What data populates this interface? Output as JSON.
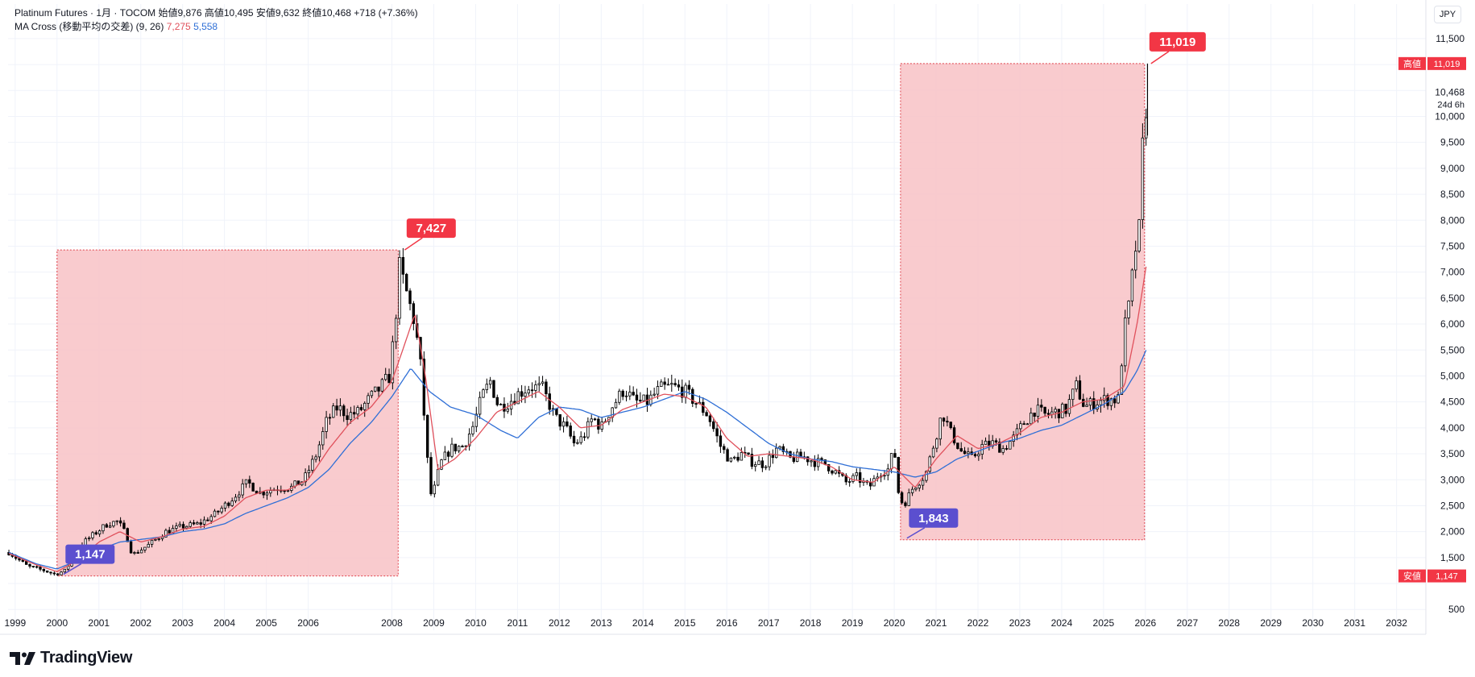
{
  "header": {
    "line1": "Platinum Futures · 1月 · TOCOM  始値9,876  高値10,495  安値9,632  終値10,468  +718 (+7.36%)",
    "ma_label": "MA Cross (移動平均の交差) (9, 26)",
    "ma_fast_value": "7,275",
    "ma_slow_value": "5,558"
  },
  "currency_button": "JPY",
  "logo_text": "TradingView",
  "colors": {
    "up": "#000000",
    "down": "#000000",
    "ma_fast": "#e0515c",
    "ma_slow": "#2f6fd6",
    "zone_fill": "#f8c2c6",
    "zone_border": "#e0404a",
    "high_label_bg": "#f23645",
    "low_label_bg": "#5b4fcf",
    "grid": "#f0f3fa"
  },
  "chart_data": {
    "type": "candlestick",
    "interval": "1M",
    "y_axis": {
      "position": "right",
      "ticks": [
        500,
        1000,
        1500,
        2000,
        2500,
        3000,
        3500,
        4000,
        4500,
        5000,
        5500,
        6000,
        6500,
        7000,
        7500,
        8000,
        8500,
        9000,
        9500,
        10000,
        10500,
        11000,
        11500
      ],
      "tick_labels": [
        "500",
        "",
        "1,500",
        "2,000",
        "2,500",
        "3,000",
        "3,500",
        "4,000",
        "4,500",
        "5,000",
        "5,500",
        "6,000",
        "6,500",
        "7,000",
        "7,500",
        "8,000",
        "8,500",
        "9,000",
        "9,500",
        "10,000",
        "",
        "",
        "11,500"
      ],
      "range": [
        100,
        11700
      ]
    },
    "x_axis": {
      "tick_labels": [
        "1999",
        "2000",
        "2001",
        "2002",
        "2003",
        "2004",
        "2005",
        "2006",
        "2008",
        "2009",
        "2010",
        "2011",
        "2012",
        "2013",
        "2014",
        "2015",
        "2016",
        "2017",
        "2018",
        "2019",
        "2020",
        "2021",
        "2022",
        "2023",
        "2024",
        "2025",
        "2026",
        "2027",
        "2028",
        "2029",
        "2030",
        "2031",
        "2032"
      ],
      "range": [
        1998.83,
        2032.7
      ]
    },
    "price_anchors": [
      [
        1998.85,
        1600
      ],
      [
        1999.3,
        1330
      ],
      [
        1999.7,
        1250
      ],
      [
        1999.95,
        1180
      ],
      [
        2000.2,
        1250
      ],
      [
        2000.5,
        1700
      ],
      [
        2000.8,
        1900
      ],
      [
        2001.2,
        2150
      ],
      [
        2001.45,
        2200
      ],
      [
        2001.65,
        1950
      ],
      [
        2001.8,
        1550
      ],
      [
        2002.2,
        1750
      ],
      [
        2002.6,
        2000
      ],
      [
        2003.0,
        2100
      ],
      [
        2003.4,
        2150
      ],
      [
        2003.8,
        2350
      ],
      [
        2004.2,
        2650
      ],
      [
        2004.55,
        2950
      ],
      [
        2004.85,
        2750
      ],
      [
        2005.3,
        2850
      ],
      [
        2005.6,
        2850
      ],
      [
        2005.9,
        3000
      ],
      [
        2006.2,
        3500
      ],
      [
        2006.45,
        4150
      ],
      [
        2006.7,
        4400
      ],
      [
        2006.95,
        4250
      ],
      [
        2007.2,
        4300
      ],
      [
        2007.45,
        4550
      ],
      [
        2007.7,
        4750
      ],
      [
        2007.95,
        5000
      ],
      [
        2008.1,
        6250
      ],
      [
        2008.18,
        7100
      ],
      [
        2008.35,
        6600
      ],
      [
        2008.55,
        6000
      ],
      [
        2008.7,
        5100
      ],
      [
        2008.82,
        3600
      ],
      [
        2008.95,
        2600
      ],
      [
        2009.15,
        3300
      ],
      [
        2009.4,
        3600
      ],
      [
        2009.7,
        3650
      ],
      [
        2009.95,
        4050
      ],
      [
        2010.15,
        4600
      ],
      [
        2010.35,
        4900
      ],
      [
        2010.55,
        4400
      ],
      [
        2010.8,
        4500
      ],
      [
        2011.0,
        4650
      ],
      [
        2011.3,
        4800
      ],
      [
        2011.6,
        4750
      ],
      [
        2011.9,
        4200
      ],
      [
        2012.15,
        4000
      ],
      [
        2012.35,
        3700
      ],
      [
        2012.55,
        3800
      ],
      [
        2012.8,
        4200
      ],
      [
        2013.0,
        4000
      ],
      [
        2013.25,
        4400
      ],
      [
        2013.55,
        4750
      ],
      [
        2013.8,
        4500
      ],
      [
        2014.1,
        4500
      ],
      [
        2014.4,
        4750
      ],
      [
        2014.7,
        4800
      ],
      [
        2015.0,
        4700
      ],
      [
        2015.25,
        4500
      ],
      [
        2015.55,
        4250
      ],
      [
        2015.85,
        3650
      ],
      [
        2016.1,
        3350
      ],
      [
        2016.35,
        3500
      ],
      [
        2016.6,
        3350
      ],
      [
        2016.9,
        3300
      ],
      [
        2017.2,
        3600
      ],
      [
        2017.5,
        3400
      ],
      [
        2017.8,
        3450
      ],
      [
        2018.1,
        3350
      ],
      [
        2018.35,
        3300
      ],
      [
        2018.6,
        3150
      ],
      [
        2018.85,
        2950
      ],
      [
        2019.1,
        3050
      ],
      [
        2019.4,
        2850
      ],
      [
        2019.65,
        3150
      ],
      [
        2019.85,
        3200
      ],
      [
        2020.0,
        3600
      ],
      [
        2020.12,
        2600
      ],
      [
        2020.25,
        2550
      ],
      [
        2020.45,
        2850
      ],
      [
        2020.75,
        3100
      ],
      [
        2020.95,
        3700
      ],
      [
        2021.15,
        4300
      ],
      [
        2021.35,
        3900
      ],
      [
        2021.6,
        3550
      ],
      [
        2021.85,
        3400
      ],
      [
        2022.1,
        3650
      ],
      [
        2022.35,
        3700
      ],
      [
        2022.6,
        3600
      ],
      [
        2022.85,
        3800
      ],
      [
        2023.1,
        4100
      ],
      [
        2023.35,
        4350
      ],
      [
        2023.6,
        4250
      ],
      [
        2023.85,
        4300
      ],
      [
        2024.1,
        4350
      ],
      [
        2024.35,
        4800
      ],
      [
        2024.55,
        4400
      ],
      [
        2024.8,
        4500
      ],
      [
        2025.1,
        4550
      ],
      [
        2025.35,
        4550
      ],
      [
        2025.5,
        5900
      ],
      [
        2025.62,
        6400
      ],
      [
        2025.75,
        7400
      ],
      [
        2025.85,
        7800
      ],
      [
        2025.95,
        9700
      ],
      [
        2026.05,
        10468
      ]
    ],
    "ma_fast": {
      "name": "MA(9)",
      "anchors": [
        [
          1998.85,
          1580
        ],
        [
          1999.5,
          1360
        ],
        [
          2000.0,
          1230
        ],
        [
          2000.5,
          1450
        ],
        [
          2001.0,
          1800
        ],
        [
          2001.5,
          2000
        ],
        [
          2002.0,
          1800
        ],
        [
          2002.5,
          1900
        ],
        [
          2003.0,
          2050
        ],
        [
          2003.5,
          2100
        ],
        [
          2004.0,
          2300
        ],
        [
          2004.5,
          2650
        ],
        [
          2005.0,
          2800
        ],
        [
          2005.5,
          2800
        ],
        [
          2006.0,
          3000
        ],
        [
          2006.5,
          3600
        ],
        [
          2007.0,
          4100
        ],
        [
          2007.5,
          4400
        ],
        [
          2008.0,
          4900
        ],
        [
          2008.3,
          5600
        ],
        [
          2008.55,
          6200
        ],
        [
          2008.8,
          5000
        ],
        [
          2009.1,
          3200
        ],
        [
          2009.5,
          3400
        ],
        [
          2010.0,
          3800
        ],
        [
          2010.5,
          4300
        ],
        [
          2011.0,
          4500
        ],
        [
          2011.5,
          4700
        ],
        [
          2012.0,
          4400
        ],
        [
          2012.5,
          4000
        ],
        [
          2013.0,
          4050
        ],
        [
          2013.5,
          4350
        ],
        [
          2014.0,
          4500
        ],
        [
          2014.5,
          4650
        ],
        [
          2015.0,
          4600
        ],
        [
          2015.5,
          4400
        ],
        [
          2016.0,
          3800
        ],
        [
          2016.5,
          3450
        ],
        [
          2017.0,
          3500
        ],
        [
          2017.5,
          3450
        ],
        [
          2018.0,
          3400
        ],
        [
          2018.5,
          3250
        ],
        [
          2019.0,
          3000
        ],
        [
          2019.5,
          2950
        ],
        [
          2020.0,
          3250
        ],
        [
          2020.5,
          2850
        ],
        [
          2021.0,
          3400
        ],
        [
          2021.5,
          3850
        ],
        [
          2022.0,
          3600
        ],
        [
          2022.5,
          3700
        ],
        [
          2023.0,
          3900
        ],
        [
          2023.5,
          4200
        ],
        [
          2024.0,
          4300
        ],
        [
          2024.5,
          4500
        ],
        [
          2025.0,
          4550
        ],
        [
          2025.5,
          4800
        ],
        [
          2025.8,
          6000
        ],
        [
          2026.05,
          7275
        ]
      ]
    },
    "ma_slow": {
      "name": "MA(26)",
      "anchors": [
        [
          1998.85,
          1600
        ],
        [
          1999.5,
          1380
        ],
        [
          2000.0,
          1280
        ],
        [
          2000.5,
          1450
        ],
        [
          2001.0,
          1650
        ],
        [
          2001.5,
          1800
        ],
        [
          2002.0,
          1850
        ],
        [
          2002.5,
          1900
        ],
        [
          2003.0,
          2000
        ],
        [
          2003.5,
          2050
        ],
        [
          2004.0,
          2150
        ],
        [
          2004.5,
          2350
        ],
        [
          2005.0,
          2500
        ],
        [
          2005.5,
          2650
        ],
        [
          2006.0,
          2850
        ],
        [
          2006.5,
          3200
        ],
        [
          2007.0,
          3700
        ],
        [
          2007.5,
          4100
        ],
        [
          2008.0,
          4600
        ],
        [
          2008.45,
          5150
        ],
        [
          2008.9,
          4700
        ],
        [
          2009.4,
          4400
        ],
        [
          2010.0,
          4250
        ],
        [
          2010.6,
          3950
        ],
        [
          2011.0,
          3800
        ],
        [
          2011.5,
          4200
        ],
        [
          2012.0,
          4400
        ],
        [
          2012.5,
          4350
        ],
        [
          2013.0,
          4200
        ],
        [
          2013.5,
          4300
        ],
        [
          2014.0,
          4400
        ],
        [
          2014.5,
          4550
        ],
        [
          2015.0,
          4700
        ],
        [
          2015.5,
          4550
        ],
        [
          2016.0,
          4300
        ],
        [
          2016.5,
          4000
        ],
        [
          2017.0,
          3700
        ],
        [
          2017.5,
          3500
        ],
        [
          2018.0,
          3400
        ],
        [
          2018.5,
          3350
        ],
        [
          2019.0,
          3250
        ],
        [
          2019.5,
          3200
        ],
        [
          2020.0,
          3150
        ],
        [
          2020.5,
          3050
        ],
        [
          2021.0,
          3150
        ],
        [
          2021.5,
          3400
        ],
        [
          2022.0,
          3550
        ],
        [
          2022.5,
          3700
        ],
        [
          2023.0,
          3800
        ],
        [
          2023.5,
          3950
        ],
        [
          2024.0,
          4050
        ],
        [
          2024.5,
          4250
        ],
        [
          2025.0,
          4450
        ],
        [
          2025.5,
          4700
        ],
        [
          2025.8,
          5100
        ],
        [
          2026.05,
          5558
        ]
      ]
    },
    "last_price": {
      "label": "10,468",
      "countdown": "24d 6h",
      "value": 10468
    },
    "high_marker": {
      "label": "高値",
      "value_label": "11,019",
      "value": 11019
    },
    "low_marker": {
      "label": "安値",
      "value_label": "1,147",
      "value": 1147
    },
    "ranges": [
      {
        "x0": 2000.0,
        "x1": 2008.15,
        "y_low": 1147,
        "y_high": 7427,
        "low_label": "1,147",
        "high_label": "7,427"
      },
      {
        "x0": 2020.15,
        "x1": 2025.98,
        "y_low": 1843,
        "y_high": 11019,
        "low_label": "1,843",
        "high_label": "11,019"
      }
    ]
  }
}
